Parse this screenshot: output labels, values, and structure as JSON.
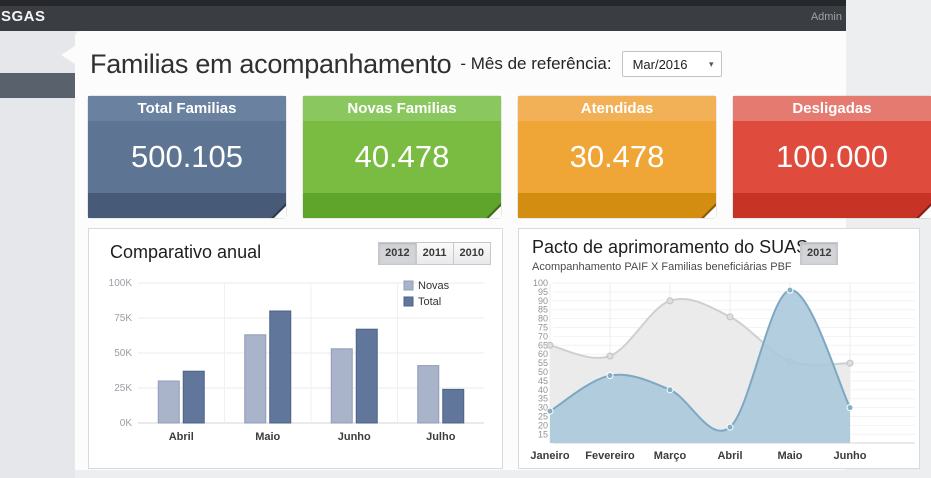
{
  "topbar": {
    "brand": "SGAS",
    "user": "Admin"
  },
  "header": {
    "title": "Familias em acompanhamento",
    "reference_label": "- Mês de referência:",
    "month_value": "Mar/2016"
  },
  "cards": [
    {
      "label": "Total Familias",
      "value": "500.105",
      "colors": {
        "header": "#6a81a0",
        "body": "#5d7492",
        "footer": "#475a78"
      }
    },
    {
      "label": "Novas Familias",
      "value": "40.478",
      "colors": {
        "header": "#8bc75f",
        "body": "#79bc41",
        "footer": "#5fa52c"
      }
    },
    {
      "label": "Atendidas",
      "value": "30.478",
      "colors": {
        "header": "#f2b157",
        "body": "#efa637",
        "footer": "#d38e12"
      }
    },
    {
      "label": "Desligadas",
      "value": "100.000",
      "colors": {
        "header": "#e57a70",
        "body": "#df4b3d",
        "footer": "#c73425"
      }
    }
  ],
  "chart_data": [
    {
      "type": "bar",
      "panel_title": "Comparativo anual",
      "year_buttons": [
        "2012",
        "2011",
        "2010"
      ],
      "selected_year": "2012",
      "categories": [
        "Abril",
        "Maio",
        "Junho",
        "Julho"
      ],
      "series": [
        {
          "name": "Novas",
          "color": "#a9b3c9",
          "border": "#8f9cba",
          "values": [
            30000,
            63000,
            53000,
            41000
          ]
        },
        {
          "name": "Total",
          "color": "#60769a",
          "border": "#4d6286",
          "values": [
            37000,
            80000,
            67000,
            24000
          ]
        }
      ],
      "ylabel_ticks": [
        "0K",
        "25K",
        "50K",
        "75K",
        "100K"
      ],
      "ylim": [
        0,
        100000
      ],
      "grid": true,
      "legend_position": "top-right"
    },
    {
      "type": "area",
      "panel_title": "Pacto de aprimoramento do SUAS",
      "panel_subtitle": "Acompanhamento PAIF X Familias beneficiárias PBF",
      "year_buttons": [
        "2012"
      ],
      "selected_year": "2012",
      "x": [
        "Janeiro",
        "Fevereiro",
        "Março",
        "Abril",
        "Maio",
        "Junho"
      ],
      "series": [
        {
          "name": "Familias beneficiárias PBF",
          "line": "#cdd0d3",
          "fill": "#ebebec",
          "fill_opacity": 1,
          "marker": "#dcdedf",
          "marker_stroke": "#bfc3c6",
          "values": [
            65,
            59,
            90,
            81,
            56,
            55
          ]
        },
        {
          "name": "Acompanhamento PAIF",
          "line": "#7da8c3",
          "fill": "#a9c7d9",
          "fill_opacity": 0.88,
          "marker": "#85aec7",
          "marker_stroke": "#ffffff",
          "values": [
            28,
            48,
            40,
            19,
            96,
            30
          ]
        }
      ],
      "ylim": [
        15,
        100
      ],
      "ytick_step": 5,
      "grid": true,
      "legend_position": "none"
    }
  ]
}
